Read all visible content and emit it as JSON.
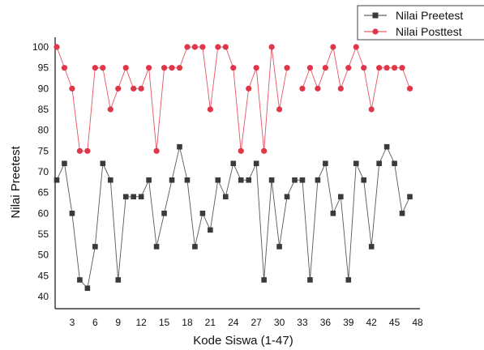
{
  "chart_data": {
    "type": "line",
    "xlabel": "Kode Siswa (1-47)",
    "ylabel": "Nilai Preetest",
    "xticks": [
      3,
      6,
      9,
      12,
      15,
      18,
      21,
      24,
      27,
      30,
      33,
      36,
      39,
      42,
      45,
      48
    ],
    "yticks": [
      40,
      45,
      50,
      55,
      60,
      65,
      70,
      75,
      80,
      85,
      90,
      95,
      100
    ],
    "xlim": [
      1,
      48
    ],
    "ylim": [
      37,
      103
    ],
    "legend": "top-right",
    "grid": false,
    "series": [
      {
        "name": "Nilai Preetest",
        "color": "#3a3a3a",
        "x": [
          1,
          2,
          3,
          4,
          5,
          6,
          7,
          8,
          9,
          10,
          11,
          12,
          13,
          14,
          15,
          16,
          17,
          18,
          19,
          20,
          21,
          22,
          23,
          24,
          25,
          26,
          27,
          28,
          29,
          30,
          31,
          32,
          33,
          34,
          35,
          36,
          37,
          38,
          39,
          40,
          41,
          42,
          43,
          44,
          45,
          46,
          47
        ],
        "y": [
          68,
          72,
          60,
          44,
          42,
          52,
          72,
          68,
          44,
          64,
          64,
          64,
          68,
          52,
          60,
          68,
          76,
          68,
          52,
          60,
          56,
          68,
          64,
          72,
          68,
          68,
          72,
          44,
          68,
          52,
          64,
          68,
          68,
          44,
          68,
          72,
          60,
          64,
          44,
          72,
          68,
          52,
          72,
          76,
          72,
          60,
          64
        ]
      },
      {
        "name": "Nilai Posttest",
        "color": "#e0364a",
        "x": [
          1,
          2,
          3,
          4,
          5,
          6,
          7,
          8,
          9,
          10,
          11,
          12,
          13,
          14,
          15,
          16,
          17,
          18,
          19,
          20,
          21,
          22,
          23,
          24,
          25,
          26,
          27,
          28,
          29,
          30,
          31,
          32,
          33,
          34,
          35,
          36,
          37,
          38,
          39,
          40,
          41,
          42,
          43,
          44,
          45,
          46,
          47
        ],
        "y": [
          100,
          95,
          90,
          75,
          75,
          95,
          95,
          85,
          90,
          95,
          90,
          90,
          95,
          75,
          95,
          95,
          95,
          100,
          100,
          100,
          85,
          100,
          100,
          95,
          75,
          90,
          95,
          75,
          100,
          85,
          95,
          null,
          90,
          95,
          90,
          95,
          100,
          90,
          95,
          100,
          95,
          85,
          95,
          95,
          95,
          95,
          90
        ]
      }
    ]
  }
}
